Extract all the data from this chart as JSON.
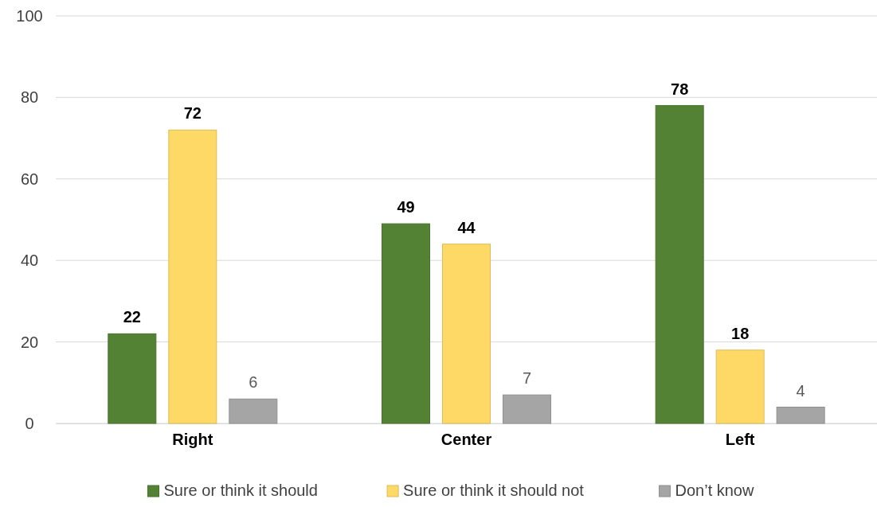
{
  "chart_data": {
    "type": "bar",
    "categories": [
      "Right",
      "Center",
      "Left"
    ],
    "series": [
      {
        "name": "Sure or think it should",
        "color": "#548235",
        "values": [
          22,
          49,
          78
        ]
      },
      {
        "name": "Sure or think it should not",
        "color": "#ffd966",
        "values": [
          72,
          44,
          18
        ]
      },
      {
        "name": "Don’t know",
        "color": "#a5a5a5",
        "values": [
          6,
          7,
          4
        ]
      }
    ],
    "ylim": [
      0,
      100
    ],
    "yticks": [
      0,
      20,
      40,
      60,
      80,
      100
    ],
    "grid": "y",
    "legend": "bottom",
    "data_labels": true
  }
}
